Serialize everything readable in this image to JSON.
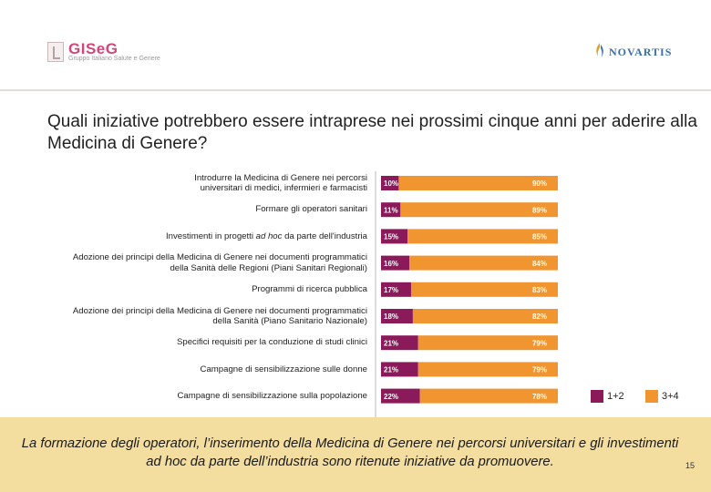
{
  "header": {
    "left_logo": {
      "name": "GISeG",
      "subtitle": "Gruppo Italiano Salute e Genere"
    },
    "right_logo": {
      "name": "NOVARTIS"
    }
  },
  "slide": {
    "title": "Quali iniziative potrebbero essere intraprese nei prossimi cinque anni per aderire alla Medicina di Genere?",
    "conclusion": "La formazione degli operatori, l’inserimento della Medicina di Genere nei percorsi universitari e gli investimenti ad hoc da parte dell’industria sono ritenute iniziative da promuovere.",
    "page_number": "15"
  },
  "chart_data": {
    "type": "bar",
    "orientation": "horizontal",
    "stacked": true,
    "percent": true,
    "categories": [
      "Introdurre la Medicina di Genere nei percorsi universitari di medici, infermieri e farmacisti",
      "Formare gli operatori sanitari",
      "Investimenti in progetti ad hoc da parte dell'industria",
      "Adozione dei principi della Medicina di Genere nei documenti programmatici della Sanità delle Regioni (Piani Sanitari Regionali)",
      "Programmi di ricerca pubblica",
      "Adozione dei principi della Medicina di Genere nei documenti programmatici della Sanità (Piano Sanitario Nazionale)",
      "Specifici requisiti per la conduzione di studi clinici",
      "Campagne di sensibilizzazione sulle donne",
      "Campagne di sensibilizzazione sulla popolazione"
    ],
    "category_lines": [
      [
        "Introdurre la Medicina di Genere nei percorsi",
        "universitari di medici, infermieri e farmacisti"
      ],
      [
        "Formare gli operatori sanitari"
      ],
      [
        "Investimenti in progetti ad hoc da parte dell'industria"
      ],
      [
        "Adozione dei principi della Medicina di Genere nei documenti programmatici",
        "della Sanità delle Regioni (Piani Sanitari Regionali)"
      ],
      [
        "Programmi di ricerca pubblica"
      ],
      [
        "Adozione dei principi della Medicina di Genere nei documenti programmatici",
        "della Sanità (Piano Sanitario Nazionale)"
      ],
      [
        "Specifici requisiti per la conduzione di studi clinici"
      ],
      [
        "Campagne di sensibilizzazione sulle donne"
      ],
      [
        "Campagne di sensibilizzazione sulla popolazione"
      ]
    ],
    "series": [
      {
        "name": "1+2",
        "color": "#8b1a5a",
        "values": [
          10,
          11,
          15,
          16,
          17,
          18,
          21,
          21,
          22
        ]
      },
      {
        "name": "3+4",
        "color": "#f0952f",
        "values": [
          90,
          89,
          85,
          84,
          83,
          82,
          79,
          79,
          78
        ]
      }
    ],
    "value_labels": [
      [
        "10%",
        "90%"
      ],
      [
        "11%",
        "89%"
      ],
      [
        "15%",
        "85%"
      ],
      [
        "16%",
        "84%"
      ],
      [
        "17%",
        "83%"
      ],
      [
        "18%",
        "82%"
      ],
      [
        "21%",
        "79%"
      ],
      [
        "21%",
        "79%"
      ],
      [
        "22%",
        "78%"
      ]
    ],
    "xlim": [
      0,
      100
    ],
    "legend": "bottom-right",
    "grid": false
  }
}
